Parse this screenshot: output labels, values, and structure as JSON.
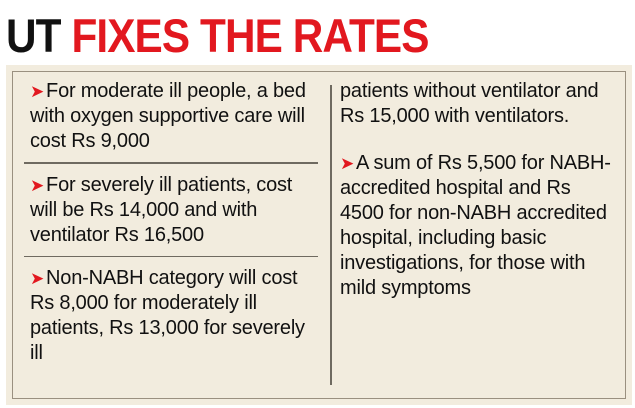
{
  "headline": {
    "lead": "UT",
    "accent": "FIXES THE RATES"
  },
  "left_column": [
    "For moderate ill people, a bed with oxygen supportive care will cost Rs 9,000",
    "For severely ill patients, cost will be Rs 14,000 and with ventilator Rs 16,500",
    "Non-NABH category will cost Rs 8,000 for moderately ill patients, Rs 13,000 for severely ill"
  ],
  "right_column": [
    "patients without ventilator and Rs 15,000 with ventilators.",
    "A sum of Rs 5,500 for NABH-accredited hospital and Rs 4500 for non-NABH accredited hospital, including basic investigations, for those with mild symptoms"
  ],
  "bullet_glyph": "➤",
  "colors": {
    "accent": "#e2181f",
    "panel_background": "#f2ecde",
    "text": "#111111"
  }
}
